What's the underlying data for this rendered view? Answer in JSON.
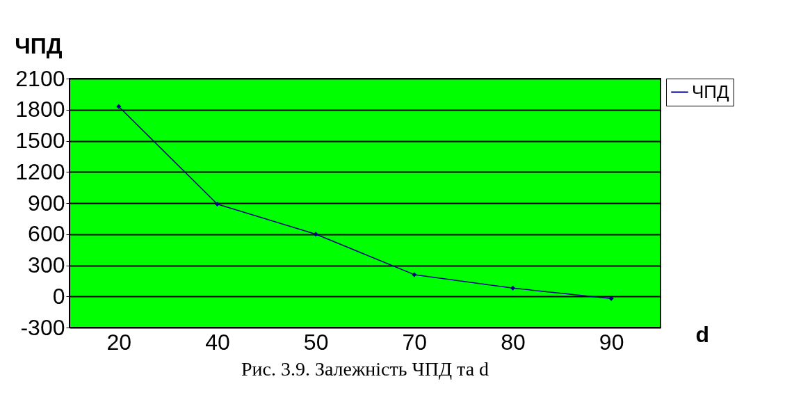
{
  "chart_data": {
    "type": "line",
    "categories": [
      "20",
      "40",
      "50",
      "70",
      "80",
      "90"
    ],
    "series": [
      {
        "name": "ЧПД",
        "color": "#000080",
        "values": [
          1830,
          890,
          600,
          210,
          80,
          -20
        ]
      }
    ],
    "ylabel": "ЧПД",
    "xlabel": "d",
    "ylim": [
      -300,
      2100
    ],
    "yticks": [
      -300,
      0,
      300,
      600,
      900,
      1200,
      1500,
      1800,
      2100
    ],
    "grid": "y",
    "legend": "right",
    "marker": "diamond",
    "line_style": "solid",
    "annotations": [
      "Рис. 3.9. Залежність ЧПД та d"
    ]
  }
}
